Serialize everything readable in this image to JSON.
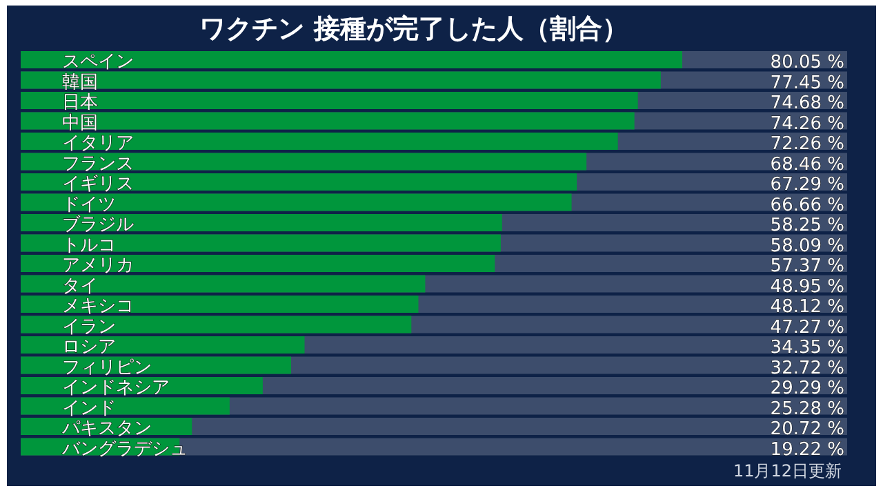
{
  "chart_data": {
    "type": "bar",
    "orientation": "horizontal",
    "title": "ワクチン 接種が完了した人（割合）",
    "categories": [
      "スペイン",
      "韓国",
      "日本",
      "中国",
      "イタリア",
      "フランス",
      "イギリス",
      "ドイツ",
      "ブラジル",
      "トルコ",
      "アメリカ",
      "タイ",
      "メキシコ",
      "イラン",
      "ロシア",
      "フィリピン",
      "インドネシア",
      "インド",
      "パキスタン",
      "バングラデシュ"
    ],
    "values": [
      80.05,
      77.45,
      74.68,
      74.26,
      72.26,
      68.46,
      67.29,
      66.66,
      58.25,
      58.09,
      57.37,
      48.95,
      48.12,
      47.27,
      34.35,
      32.72,
      29.29,
      25.28,
      20.72,
      19.22
    ],
    "value_labels": [
      "80.05 %",
      "77.45 %",
      "74.68 %",
      "74.26 %",
      "72.26 %",
      "68.46 %",
      "67.29 %",
      "66.66 %",
      "58.25 %",
      "58.09 %",
      "57.37 %",
      "48.95 %",
      "48.12 %",
      "47.27 %",
      "34.35 %",
      "32.72 %",
      "29.29 %",
      "25.28 %",
      "20.72 %",
      "19.22 %"
    ],
    "color": "#00963c",
    "xlim": [
      0,
      100
    ],
    "annotations": [
      "11月12日更新"
    ]
  }
}
